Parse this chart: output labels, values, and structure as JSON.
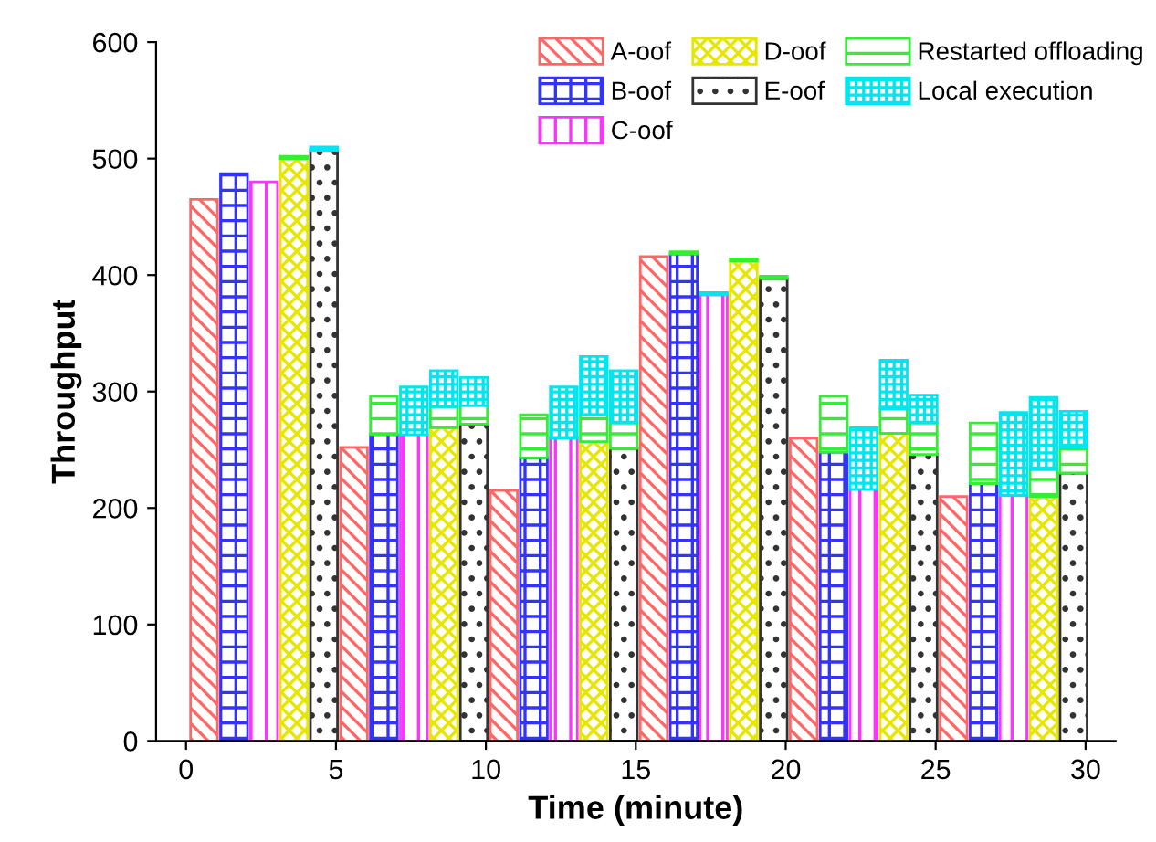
{
  "chart_data": {
    "type": "bar",
    "stacked": true,
    "xlabel": "Time (minute)",
    "ylabel": "Throughput",
    "x": [
      0.6,
      1.6,
      2.6,
      3.6,
      4.6,
      5.6,
      6.6,
      7.6,
      8.6,
      9.6,
      10.6,
      11.6,
      12.6,
      13.6,
      14.6,
      15.6,
      16.6,
      17.6,
      18.6,
      19.6,
      20.6,
      21.6,
      22.6,
      23.6,
      24.6,
      25.6,
      26.6,
      27.6,
      28.6,
      29.6
    ],
    "series": [
      {
        "name": "A-oof",
        "color": "#ff6666",
        "values": [
          465,
          null,
          null,
          null,
          null,
          252,
          null,
          null,
          null,
          null,
          215,
          null,
          null,
          null,
          null,
          416,
          null,
          null,
          null,
          null,
          260,
          null,
          null,
          null,
          null,
          210,
          null,
          null,
          null,
          null
        ]
      },
      {
        "name": "B-oof",
        "color": "#3333ff",
        "values": [
          null,
          487,
          null,
          null,
          null,
          null,
          263,
          null,
          null,
          null,
          null,
          243,
          null,
          null,
          null,
          null,
          418,
          null,
          null,
          null,
          null,
          248,
          null,
          null,
          null,
          null,
          221,
          null,
          null,
          null
        ]
      },
      {
        "name": "C-oof",
        "color": "#ff33ff",
        "values": [
          null,
          null,
          480,
          null,
          null,
          null,
          null,
          263,
          null,
          null,
          null,
          null,
          260,
          null,
          null,
          null,
          null,
          383,
          null,
          null,
          null,
          null,
          216,
          null,
          null,
          null,
          null,
          211,
          null,
          null
        ]
      },
      {
        "name": "D-oof",
        "color": "#e6e600",
        "values": [
          null,
          null,
          null,
          500,
          null,
          null,
          null,
          null,
          269,
          null,
          null,
          null,
          null,
          257,
          null,
          null,
          null,
          null,
          412,
          null,
          null,
          null,
          null,
          264,
          null,
          null,
          null,
          null,
          210,
          null
        ]
      },
      {
        "name": "E-oof",
        "color": "#333333",
        "values": [
          null,
          null,
          null,
          null,
          507,
          null,
          null,
          null,
          null,
          272,
          null,
          null,
          null,
          null,
          251,
          null,
          null,
          null,
          null,
          397,
          null,
          null,
          null,
          null,
          246,
          null,
          null,
          null,
          null,
          230
        ]
      },
      {
        "name": "Restarted offloading",
        "color": "#33ee33",
        "values": [
          null,
          null,
          null,
          2,
          null,
          null,
          33,
          null,
          18,
          16,
          null,
          37,
          null,
          23,
          22,
          null,
          2,
          null,
          2,
          2,
          null,
          48,
          null,
          21,
          27,
          null,
          52,
          null,
          23,
          22
        ]
      },
      {
        "name": "Local execution",
        "color": "#00e5ee",
        "values": [
          null,
          null,
          null,
          null,
          3,
          null,
          null,
          41,
          31,
          24,
          null,
          null,
          44,
          50,
          45,
          null,
          null,
          2,
          null,
          null,
          null,
          null,
          53,
          42,
          24,
          null,
          null,
          71,
          62,
          31
        ]
      }
    ],
    "xlim": [
      -1,
      31
    ],
    "xticks": [
      0,
      5,
      10,
      15,
      20,
      25,
      30
    ],
    "ylim": [
      0,
      600
    ],
    "yticks": [
      0,
      100,
      200,
      300,
      400,
      500,
      600
    ],
    "grid": false,
    "legend": "top right"
  }
}
